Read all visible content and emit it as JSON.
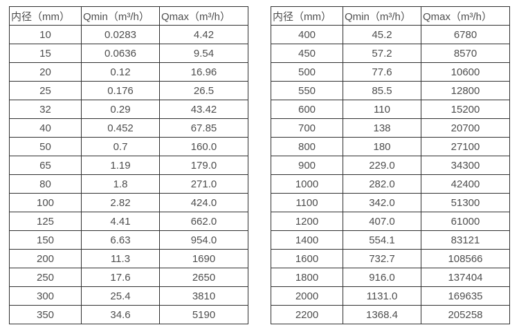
{
  "columns": [
    "内径（mm）",
    "Qmin（m³/h）",
    "Qmax（m³/h）"
  ],
  "colors": {
    "border": "#2e2e2e",
    "text": "#4d4d4d",
    "background": "#ffffff"
  },
  "tables": [
    {
      "name": "small-diameters",
      "rows": [
        [
          "10",
          "0.0283",
          "4.42"
        ],
        [
          "15",
          "0.0636",
          "9.54"
        ],
        [
          "20",
          "0.12",
          "16.96"
        ],
        [
          "25",
          "0.176",
          "26.5"
        ],
        [
          "32",
          "0.29",
          "43.42"
        ],
        [
          "40",
          "0.452",
          "67.85"
        ],
        [
          "50",
          "0.7",
          "160.0"
        ],
        [
          "65",
          "1.19",
          "179.0"
        ],
        [
          "80",
          "1.8",
          "271.0"
        ],
        [
          "100",
          "2.82",
          "424.0"
        ],
        [
          "125",
          "4.41",
          "662.0"
        ],
        [
          "150",
          "6.63",
          "954.0"
        ],
        [
          "200",
          "11.3",
          "1690"
        ],
        [
          "250",
          "17.6",
          "2650"
        ],
        [
          "300",
          "25.4",
          "3810"
        ],
        [
          "350",
          "34.6",
          "5190"
        ]
      ]
    },
    {
      "name": "large-diameters",
      "rows": [
        [
          "400",
          "45.2",
          "6780"
        ],
        [
          "450",
          "57.2",
          "8570"
        ],
        [
          "500",
          "77.6",
          "10600"
        ],
        [
          "550",
          "85.5",
          "12800"
        ],
        [
          "600",
          "110",
          "15200"
        ],
        [
          "700",
          "138",
          "20700"
        ],
        [
          "800",
          "180",
          "27100"
        ],
        [
          "900",
          "229.0",
          "34300"
        ],
        [
          "1000",
          "282.0",
          "42400"
        ],
        [
          "1100",
          "342.0",
          "51300"
        ],
        [
          "1200",
          "407.0",
          "61000"
        ],
        [
          "1400",
          "554.1",
          "83121"
        ],
        [
          "1600",
          "732.7",
          "108566"
        ],
        [
          "1800",
          "916.0",
          "137404"
        ],
        [
          "2000",
          "1131.0",
          "169635"
        ],
        [
          "2200",
          "1368.4",
          "205258"
        ]
      ]
    }
  ]
}
